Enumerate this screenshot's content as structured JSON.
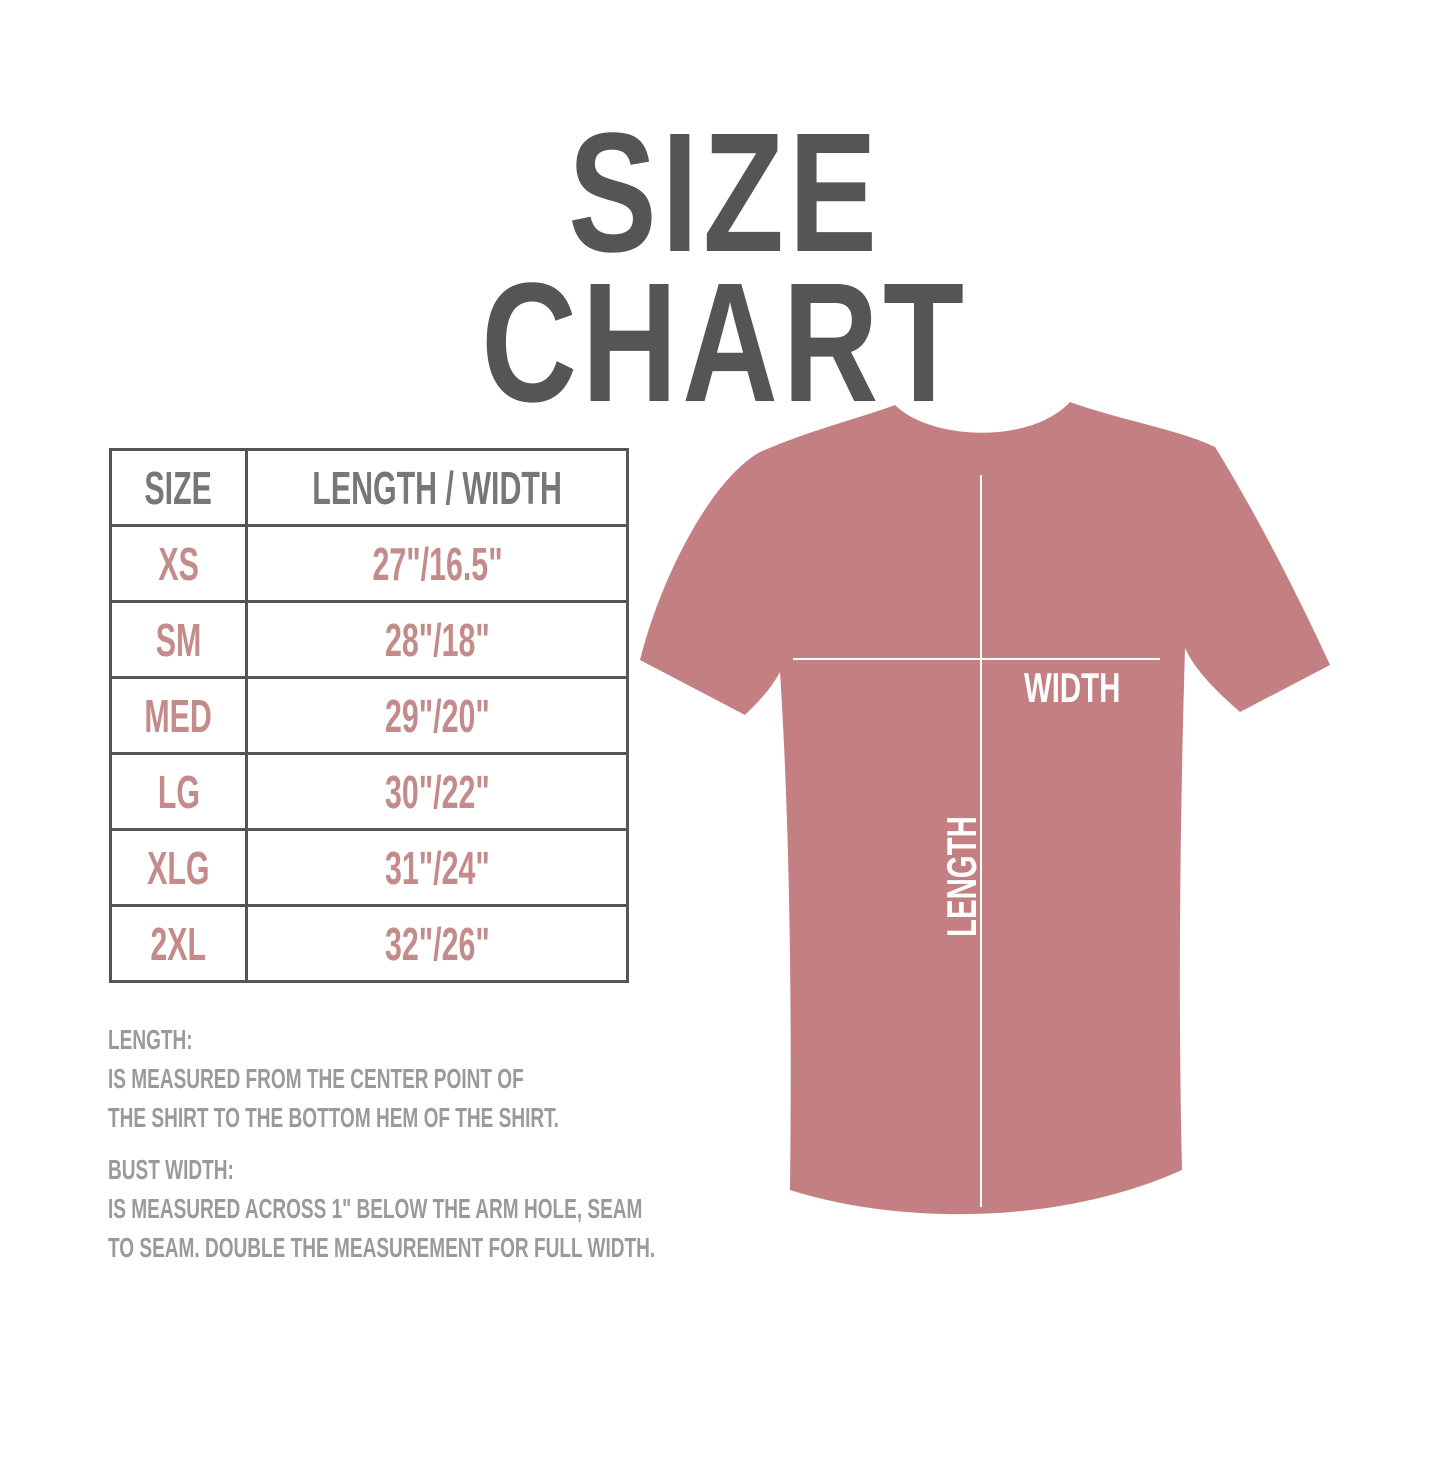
{
  "title": "SIZE CHART",
  "colors": {
    "title": "#555555",
    "header_text": "#777777",
    "value_text": "#c48b8b",
    "notes_text": "#9a9a9a",
    "shirt": "#c47f82",
    "grid": "#555555"
  },
  "table": {
    "headers": [
      "SIZE",
      "LENGTH / WIDTH"
    ],
    "rows": [
      {
        "size": "XS",
        "measure": "27\"/16.5\""
      },
      {
        "size": "SM",
        "measure": "28\"/18\""
      },
      {
        "size": "MED",
        "measure": "29\"/20\""
      },
      {
        "size": "LG",
        "measure": "30\"/22\""
      },
      {
        "size": "XLG",
        "measure": "31\"/24\""
      },
      {
        "size": "2XL",
        "measure": "32\"/26\""
      }
    ]
  },
  "notes": {
    "length_heading": "LENGTH:",
    "length_lines": [
      "IS MEASURED FROM THE CENTER POINT OF",
      "THE SHIRT TO THE BOTTOM HEM OF THE SHIRT."
    ],
    "width_heading": "BUST WIDTH:",
    "width_lines": [
      "IS MEASURED ACROSS  1\" BELOW THE ARM HOLE, SEAM",
      "TO SEAM. DOUBLE THE MEASUREMENT FOR FULL WIDTH."
    ]
  },
  "diagram": {
    "width_label": "WIDTH",
    "length_label": "LENGTH"
  }
}
